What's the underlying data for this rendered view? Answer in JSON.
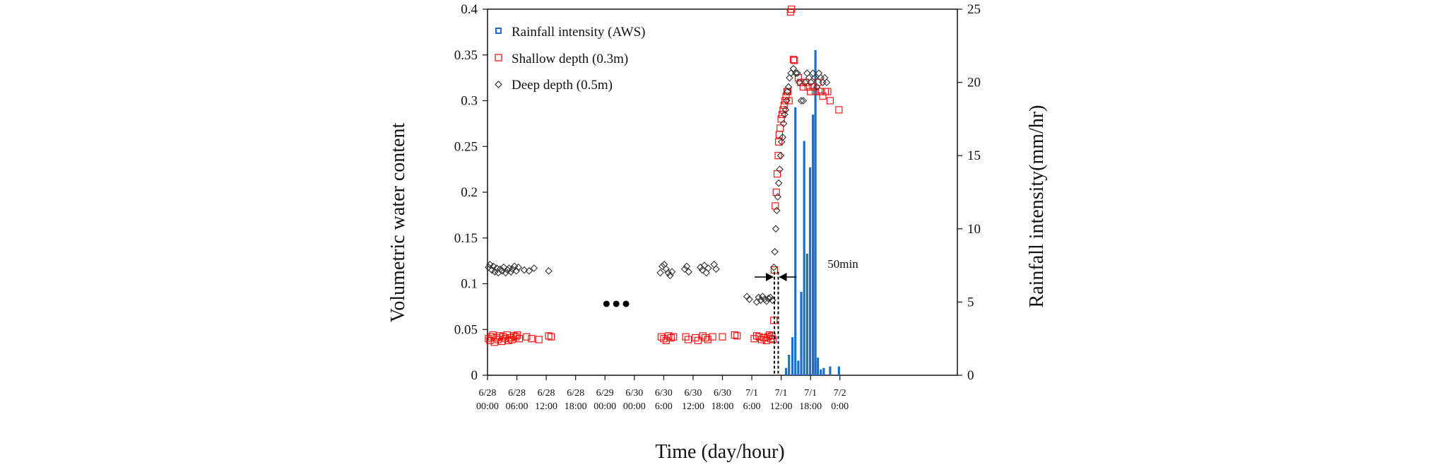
{
  "chart_data": {
    "type": "scatter",
    "xlabel": "Time (day/hour)",
    "ylabel_left": "Volumetric water content",
    "ylabel_right": "Rainfall intensity(mm/hr)",
    "y_left_range": [
      0,
      0.4
    ],
    "y_right_range": [
      0,
      25
    ],
    "y_left_ticks": [
      "0",
      "0.05",
      "0.1",
      "0.15",
      "0.2",
      "0.25",
      "0.3",
      "0.35",
      "0.4"
    ],
    "y_right_ticks": [
      "0",
      "5",
      "10",
      "15",
      "20",
      "25"
    ],
    "x_unit": "hours elapsed since 6/28 00:00 (display-position axis)",
    "x_range": [
      0,
      96
    ],
    "x_ticks": [
      {
        "x": 0,
        "date": "6/28",
        "time": "00:00"
      },
      {
        "x": 6,
        "date": "6/28",
        "time": "06:00"
      },
      {
        "x": 12,
        "date": "6/28",
        "time": "12:00"
      },
      {
        "x": 18,
        "date": "6/28",
        "time": "18:00"
      },
      {
        "x": 24,
        "date": "6/29",
        "time": "00:00"
      },
      {
        "x": 30,
        "date": "6/30",
        "time": "00:00"
      },
      {
        "x": 36,
        "date": "6/30",
        "time": "6:00"
      },
      {
        "x": 42,
        "date": "6/30",
        "time": "12:00"
      },
      {
        "x": 48,
        "date": "6/30",
        "time": "18:00"
      },
      {
        "x": 54,
        "date": "7/1",
        "time": "6:00"
      },
      {
        "x": 60,
        "date": "7/1",
        "time": "12:00"
      },
      {
        "x": 66,
        "date": "7/1",
        "time": "18:00"
      },
      {
        "x": 72,
        "date": "7/2",
        "time": "0:00"
      }
    ],
    "grid": false,
    "legend_position": "top-left",
    "legend": [
      "Rainfall intensity (AWS)",
      "Shallow depth (0.3m)",
      "Deep depth (0.5m)"
    ],
    "annotation": "50min",
    "colors": {
      "rainfall": "#1f6fc4",
      "shallow": "#ff0000",
      "deep": "#333333"
    },
    "series": [
      {
        "name": "Rainfall intensity (AWS)",
        "kind": "bar",
        "axis": "right",
        "x": [
          61.0,
          61.6,
          62.3,
          62.9,
          63.5,
          64.1,
          64.7,
          65.3,
          65.9,
          66.5,
          67.0,
          67.5,
          68.1,
          68.7,
          70.0,
          71.8
        ],
        "values": [
          0.5,
          1.4,
          2.6,
          18.3,
          1.0,
          5.7,
          16.0,
          8.3,
          14.2,
          17.8,
          22.2,
          1.2,
          0.4,
          0.5,
          0.6,
          0.6
        ]
      },
      {
        "name": "Shallow depth (0.3m)",
        "kind": "scatter",
        "axis": "left",
        "x": [
          0.2,
          0.5,
          0.8,
          1.1,
          1.4,
          1.8,
          2.1,
          2.5,
          2.9,
          3.2,
          3.6,
          4.0,
          4.3,
          4.7,
          5.0,
          5.4,
          5.8,
          6.1,
          6.5,
          8.0,
          9.0,
          10.5,
          12.5,
          13.0,
          35.5,
          36.0,
          36.5,
          37.0,
          37.5,
          38.0,
          40.5,
          41.0,
          42.5,
          43.0,
          44.0,
          44.5,
          45.0,
          46.0,
          48.0,
          50.5,
          51.0,
          54.5,
          55.0,
          55.5,
          56.0,
          56.5,
          57.0,
          57.3,
          57.6,
          57.9,
          58.1,
          58.3,
          58.5,
          58.6,
          58.8,
          59.0,
          59.2,
          59.4,
          59.5,
          59.6,
          59.8,
          60.0,
          60.2,
          60.4,
          60.6,
          60.8,
          61.0,
          61.2,
          61.4,
          61.6,
          61.9,
          62.1,
          62.5,
          62.7,
          63.5,
          64.0,
          64.5,
          65.0,
          65.5,
          66.0,
          66.5,
          67.0,
          67.5,
          68.0,
          68.5,
          69.0,
          69.5,
          70.0,
          71.8
        ],
        "values": [
          0.04,
          0.038,
          0.042,
          0.044,
          0.036,
          0.041,
          0.039,
          0.043,
          0.037,
          0.042,
          0.04,
          0.044,
          0.038,
          0.041,
          0.039,
          0.043,
          0.042,
          0.044,
          0.04,
          0.042,
          0.04,
          0.039,
          0.043,
          0.042,
          0.042,
          0.04,
          0.038,
          0.043,
          0.041,
          0.042,
          0.042,
          0.039,
          0.041,
          0.038,
          0.043,
          0.041,
          0.039,
          0.042,
          0.042,
          0.044,
          0.043,
          0.04,
          0.043,
          0.042,
          0.039,
          0.041,
          0.038,
          0.042,
          0.044,
          0.04,
          0.043,
          0.039,
          0.06,
          0.115,
          0.185,
          0.2,
          0.22,
          0.24,
          0.255,
          0.263,
          0.27,
          0.28,
          0.285,
          0.29,
          0.295,
          0.3,
          0.305,
          0.31,
          0.31,
          0.3,
          0.397,
          0.4,
          0.345,
          0.344,
          0.325,
          0.32,
          0.315,
          0.32,
          0.315,
          0.31,
          0.315,
          0.31,
          0.32,
          0.31,
          0.305,
          0.31,
          0.31,
          0.3,
          0.29
        ]
      },
      {
        "name": "Deep depth (0.5m)",
        "kind": "scatter",
        "axis": "left",
        "x": [
          0.2,
          0.5,
          0.9,
          1.2,
          1.5,
          1.9,
          2.2,
          2.6,
          3.0,
          3.3,
          3.7,
          4.1,
          4.4,
          4.8,
          5.1,
          5.5,
          5.9,
          6.3,
          7.5,
          8.5,
          9.5,
          12.5,
          35.3,
          35.7,
          36.1,
          36.5,
          36.9,
          37.3,
          37.7,
          40.3,
          40.7,
          41.1,
          43.5,
          43.9,
          44.3,
          44.7,
          45.1,
          46.3,
          46.7,
          53.0,
          53.5,
          55.0,
          55.4,
          55.8,
          56.2,
          56.6,
          57.0,
          57.4,
          57.8,
          58.2,
          58.5,
          58.7,
          58.9,
          59.1,
          59.3,
          59.5,
          59.7,
          59.9,
          60.1,
          60.3,
          60.5,
          60.7,
          60.9,
          61.1,
          61.3,
          61.5,
          61.7,
          62.0,
          62.5,
          63.0,
          63.3,
          63.7,
          64.1,
          64.5,
          64.9,
          65.3,
          65.7,
          66.1,
          66.5,
          66.9,
          67.3,
          67.7,
          68.1,
          68.5,
          68.9,
          69.3
        ],
        "values": [
          0.118,
          0.121,
          0.115,
          0.119,
          0.113,
          0.117,
          0.112,
          0.116,
          0.114,
          0.118,
          0.112,
          0.115,
          0.117,
          0.113,
          0.116,
          0.119,
          0.114,
          0.118,
          0.115,
          0.114,
          0.117,
          0.114,
          0.112,
          0.119,
          0.121,
          0.116,
          0.112,
          0.109,
          0.113,
          0.116,
          0.119,
          0.113,
          0.118,
          0.115,
          0.12,
          0.112,
          0.117,
          0.121,
          0.116,
          0.086,
          0.083,
          0.08,
          0.085,
          0.082,
          0.086,
          0.083,
          0.081,
          0.084,
          0.085,
          0.082,
          0.118,
          0.135,
          0.16,
          0.18,
          0.195,
          0.21,
          0.225,
          0.24,
          0.255,
          0.26,
          0.275,
          0.285,
          0.29,
          0.3,
          0.31,
          0.315,
          0.325,
          0.33,
          0.335,
          0.33,
          0.33,
          0.32,
          0.3,
          0.3,
          0.32,
          0.33,
          0.325,
          0.32,
          0.33,
          0.325,
          0.315,
          0.33,
          0.325,
          0.32,
          0.325,
          0.32
        ]
      }
    ]
  }
}
